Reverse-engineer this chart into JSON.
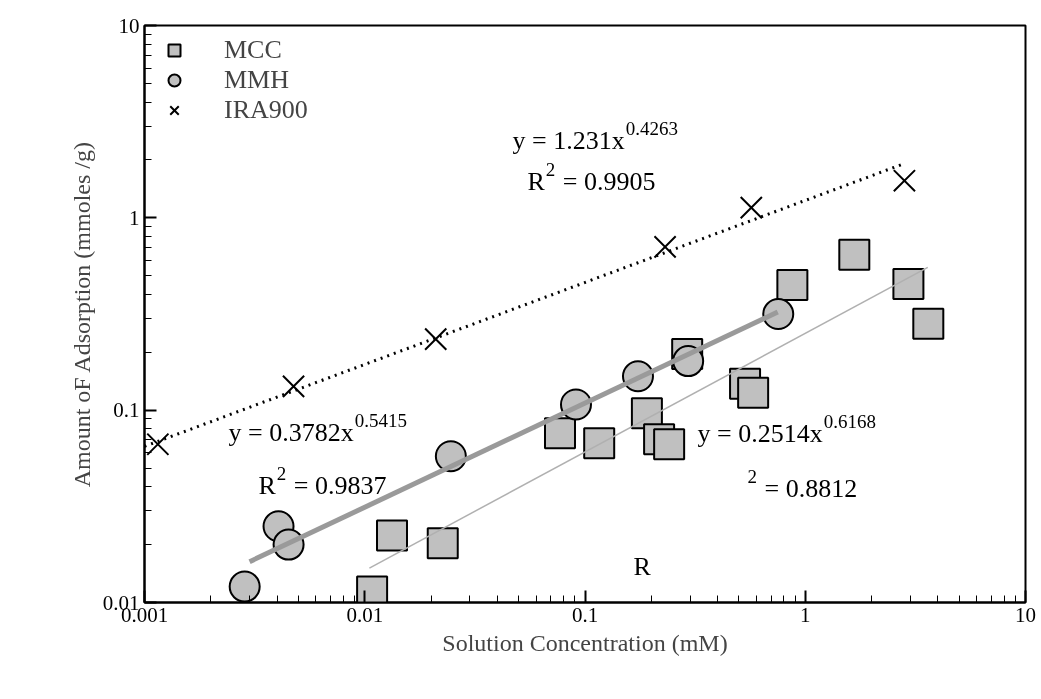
{
  "chart_data": {
    "type": "scatter",
    "xlabel": "Solution Concentration (mM)",
    "ylabel": "Amount oF Adsorption (mmoles /g)",
    "log": "xy",
    "xlim": [
      0.001,
      10
    ],
    "ylim": [
      0.01,
      10
    ],
    "xticks": [
      0.001,
      0.01,
      0.1,
      1,
      10
    ],
    "yticks": [
      0.01,
      0.1,
      1,
      10
    ],
    "grid": false,
    "legend": "top left",
    "series": [
      {
        "name": "MCC",
        "marker": "square",
        "color": "#c0c0c0",
        "x": [
          0.0108,
          0.0133,
          0.0226,
          0.077,
          0.116,
          0.191,
          0.217,
          0.241,
          0.291,
          0.533,
          0.58,
          0.874,
          1.67,
          2.94,
          3.62
        ],
        "values": [
          0.0114,
          0.0223,
          0.0203,
          0.0759,
          0.0673,
          0.0964,
          0.0706,
          0.0665,
          0.196,
          0.137,
          0.123,
          0.448,
          0.642,
          0.453,
          0.281
        ]
      },
      {
        "name": "MMH",
        "marker": "circle",
        "color": "#c0c0c0",
        "x": [
          0.00285,
          0.00406,
          0.00451,
          0.0246,
          0.091,
          0.174,
          0.294,
          0.754
        ],
        "values": [
          0.0121,
          0.0249,
          0.02,
          0.0576,
          0.107,
          0.15,
          0.18,
          0.316
        ]
      },
      {
        "name": "IRA900",
        "marker": "cross",
        "color": "#000000",
        "x": [
          0.00115,
          0.00475,
          0.021,
          0.231,
          0.569,
          2.82
        ],
        "values": [
          0.0665,
          0.133,
          0.234,
          0.706,
          1.13,
          1.56
        ]
      },
      {
        "type": "line",
        "line_style": "dotted",
        "color": "#000000",
        "x": [
          0.001,
          2.8
        ],
        "values": [
          0.0648,
          1.91
        ]
      },
      {
        "type": "line",
        "line_style": "solid",
        "color": "#9a9a9a",
        "x": [
          0.003,
          0.75
        ],
        "values": [
          0.0163,
          0.324
        ]
      },
      {
        "type": "line",
        "line_style": "solid",
        "color": "#b0b0b0",
        "x": [
          0.0105,
          3.6
        ],
        "values": [
          0.0151,
          0.553
        ]
      }
    ],
    "annotations": [
      "y = 1.231x$^{0.4263}$",
      "R$^{2}$ = 0.9905",
      "y = 0.3782x$^{0.5415}$",
      "R$^{2}$ = 0.9837",
      "y = 0.2514x$^{0.6168}$",
      "$^{2}$ = 0.8812",
      "R"
    ]
  }
}
